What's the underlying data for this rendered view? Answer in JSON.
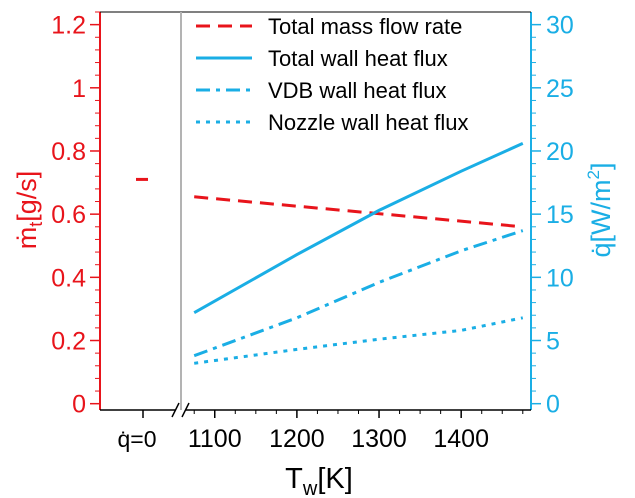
{
  "colors": {
    "left_axis": "#e8141b",
    "right_axis": "#1aaee5",
    "separator": "#b3b3b3",
    "frame": "#000000"
  },
  "chart_data": {
    "type": "line",
    "xlabel": {
      "main": "T",
      "sub": "w",
      "tail": "[K]"
    },
    "ylabel_left": {
      "main": "ṁ",
      "sub": "t",
      "tail": "[g/s]"
    },
    "ylabel_right": {
      "main": "q̇[W/m",
      "sup": "2",
      "tail": "]"
    },
    "x_ticks": [
      1100,
      1200,
      1300,
      1400
    ],
    "x_range": [
      1065,
      1485
    ],
    "y_left_ticks": [
      "0",
      "0.2",
      "0.4",
      "0.6",
      "0.8",
      "1",
      "1.2"
    ],
    "y_left_range": [
      -0.02,
      1.24
    ],
    "y_right_ticks": [
      "0",
      "5",
      "10",
      "15",
      "20",
      "25",
      "30"
    ],
    "y_right_range": [
      -0.5,
      31
    ],
    "zero_flux": {
      "label": "q̇=0",
      "mass_flow": 0.71
    },
    "legend_position": "top-right",
    "series": [
      {
        "name": "Total mass flow rate",
        "axis": "left",
        "color": "#e8141b",
        "dash": "dashed",
        "x": [
          1075,
          1475
        ],
        "y": [
          0.655,
          0.56
        ]
      },
      {
        "name": "Total wall heat flux",
        "axis": "right",
        "color": "#1aaee5",
        "dash": "solid",
        "x": [
          1075,
          1200,
          1300,
          1400,
          1475
        ],
        "y": [
          7.2,
          11.8,
          15.3,
          18.4,
          20.6
        ]
      },
      {
        "name": "VDB wall heat flux",
        "axis": "right",
        "color": "#1aaee5",
        "dash": "dashdot",
        "x": [
          1075,
          1200,
          1300,
          1400,
          1475
        ],
        "y": [
          3.8,
          6.8,
          9.6,
          12.1,
          13.7
        ]
      },
      {
        "name": "Nozzle wall heat flux",
        "axis": "right",
        "color": "#1aaee5",
        "dash": "dotted",
        "x": [
          1075,
          1200,
          1300,
          1400,
          1475
        ],
        "y": [
          3.2,
          4.3,
          5.1,
          5.8,
          6.8
        ]
      }
    ]
  }
}
